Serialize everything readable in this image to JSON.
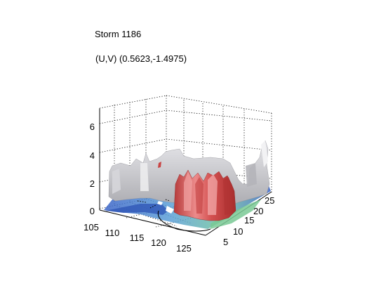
{
  "figure": {
    "title": "Storm 1186",
    "subtitle": "(U,V) (0.5623,-1.4975)"
  },
  "chart_data": {
    "type": "3d-surface",
    "title": "Storm 1186",
    "subtitle": "(U,V) (0.5623,-1.4975)",
    "xlabel": "",
    "ylabel": "",
    "zlabel": "",
    "x_ticks": [
      "105",
      "110",
      "115",
      "120",
      "125"
    ],
    "y_ticks": [
      "5",
      "10",
      "15",
      "20",
      "25"
    ],
    "z_ticks": [
      "0",
      "2",
      "4",
      "6"
    ],
    "xlim": [
      103,
      128
    ],
    "ylim": [
      2,
      28
    ],
    "zlim": [
      0,
      7
    ],
    "grid": true,
    "surfaces": [
      {
        "name": "",
        "color": "#c8c8cc",
        "heights": [
          [
            2.0,
            2.1,
            2.3,
            2.6,
            2.4,
            2.2,
            2.0,
            1.5,
            1.0,
            0.5
          ],
          [
            2.2,
            2.5,
            3.1,
            3.3,
            2.8,
            2.6,
            2.5,
            2.2,
            1.6,
            0.8
          ],
          [
            2.5,
            3.2,
            3.8,
            4.0,
            3.5,
            3.1,
            2.9,
            2.8,
            2.4,
            1.5
          ],
          [
            2.3,
            2.8,
            3.4,
            3.7,
            3.9,
            3.6,
            3.4,
            3.3,
            3.0,
            2.2
          ],
          [
            1.8,
            2.2,
            2.6,
            2.9,
            3.1,
            3.3,
            3.5,
            3.2,
            2.6,
            2.0
          ],
          [
            0.8,
            1.2,
            1.6,
            1.9,
            2.1,
            2.3,
            2.6,
            2.4,
            1.8,
            1.2
          ]
        ]
      },
      {
        "name": "",
        "color": "#d85a5a",
        "heights": [
          [
            0.0,
            0.0,
            2.6,
            3.0,
            2.8,
            0.0
          ],
          [
            0.0,
            3.2,
            3.9,
            4.2,
            3.6,
            2.9
          ],
          [
            2.4,
            3.6,
            4.4,
            4.1,
            3.8,
            3.2
          ],
          [
            2.0,
            3.0,
            3.5,
            3.7,
            3.1,
            2.5
          ]
        ]
      }
    ],
    "base_colors": [
      "#3f6fd0",
      "#5aa0d8",
      "#74c6a4",
      "#a9d88a"
    ]
  }
}
